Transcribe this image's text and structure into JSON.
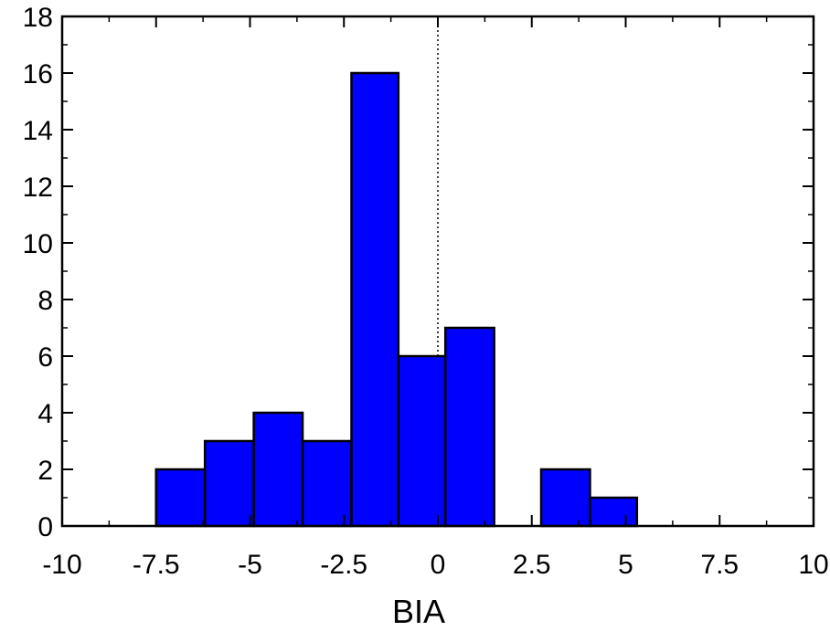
{
  "chart_data": {
    "type": "bar",
    "title": "",
    "xlabel": "BIA",
    "ylabel": "",
    "xlim": [
      -10,
      10
    ],
    "ylim": [
      0,
      18
    ],
    "x_ticks": [
      -10,
      -7.5,
      -5,
      -2.5,
      0,
      2.5,
      5,
      7.5,
      10
    ],
    "x_tick_labels": [
      "-10",
      "-7.5",
      "-5",
      "-2.5",
      "0",
      "2.5",
      "5",
      "7.5",
      "10"
    ],
    "y_ticks": [
      0,
      2,
      4,
      6,
      8,
      10,
      12,
      14,
      16,
      18
    ],
    "y_tick_labels": [
      "0",
      "2",
      "4",
      "6",
      "8",
      "10",
      "12",
      "14",
      "16",
      "18"
    ],
    "bins": [
      {
        "x0": -7.5,
        "x1": -6.2,
        "value": 2
      },
      {
        "x0": -6.2,
        "x1": -4.9,
        "value": 3
      },
      {
        "x0": -4.9,
        "x1": -3.6,
        "value": 4
      },
      {
        "x0": -3.6,
        "x1": -2.3,
        "value": 3
      },
      {
        "x0": -2.3,
        "x1": -1.05,
        "value": 16
      },
      {
        "x0": -1.05,
        "x1": 0.2,
        "value": 6
      },
      {
        "x0": 0.2,
        "x1": 1.5,
        "value": 7
      },
      {
        "x0": 2.75,
        "x1": 4.05,
        "value": 2
      },
      {
        "x0": 4.05,
        "x1": 5.3,
        "value": 1
      }
    ],
    "reference_line": {
      "x": 0,
      "style": "dotted"
    },
    "bar_color": "#0000ff",
    "grid": false,
    "legend": "none"
  }
}
